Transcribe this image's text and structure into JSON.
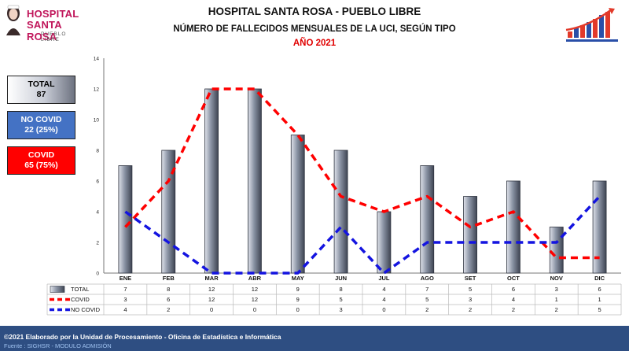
{
  "logo": {
    "line1": "HOSPITAL",
    "line2": "SANTA ROSA",
    "line3": "PUEBLO LIBRE"
  },
  "header": {
    "title": "HOSPITAL SANTA ROSA - PUEBLO LIBRE",
    "subtitle": "NÚMERO DE FALLECIDOS MENSUALES DE LA UCI, SEGÚN TIPO",
    "year": "AÑO 2021"
  },
  "summary": {
    "total_label": "TOTAL",
    "total_value": "87",
    "nocovid_label": "NO COVID",
    "nocovid_value": "22 (25%)",
    "covid_label": "COVID",
    "covid_value": "65 (75%)"
  },
  "colors": {
    "covid": "#ff0000",
    "nocovid": "#1414e0",
    "bar": "#6e7685",
    "footer": "#2e4e82"
  },
  "chart_data": {
    "type": "bar",
    "categories": [
      "ENE",
      "FEB",
      "MAR",
      "ABR",
      "MAY",
      "JUN",
      "JUL",
      "AGO",
      "SET",
      "OCT",
      "NOV",
      "DIC"
    ],
    "ylim": [
      0,
      14
    ],
    "yticks": [
      0,
      2,
      4,
      6,
      8,
      10,
      12,
      14
    ],
    "grid": false,
    "series": [
      {
        "name": "TOTAL",
        "type": "bar",
        "values": [
          7,
          8,
          12,
          12,
          9,
          8,
          4,
          7,
          5,
          6,
          3,
          6
        ]
      },
      {
        "name": "COVID",
        "type": "line",
        "style": "dashed",
        "values": [
          3,
          6,
          12,
          12,
          9,
          5,
          4,
          5,
          3,
          4,
          1,
          1
        ]
      },
      {
        "name": "NO COVID",
        "type": "line",
        "style": "dashed",
        "values": [
          4,
          2,
          0,
          0,
          0,
          3,
          0,
          2,
          2,
          2,
          2,
          5
        ]
      }
    ],
    "data_table": true
  },
  "footer": {
    "line1": "©2021 Elaborado por la Unidad de Procesamiento - Oficina de Estadística e Informática",
    "line2": "Fuente : SIGHSR - MODULO ADMISIÓN"
  }
}
